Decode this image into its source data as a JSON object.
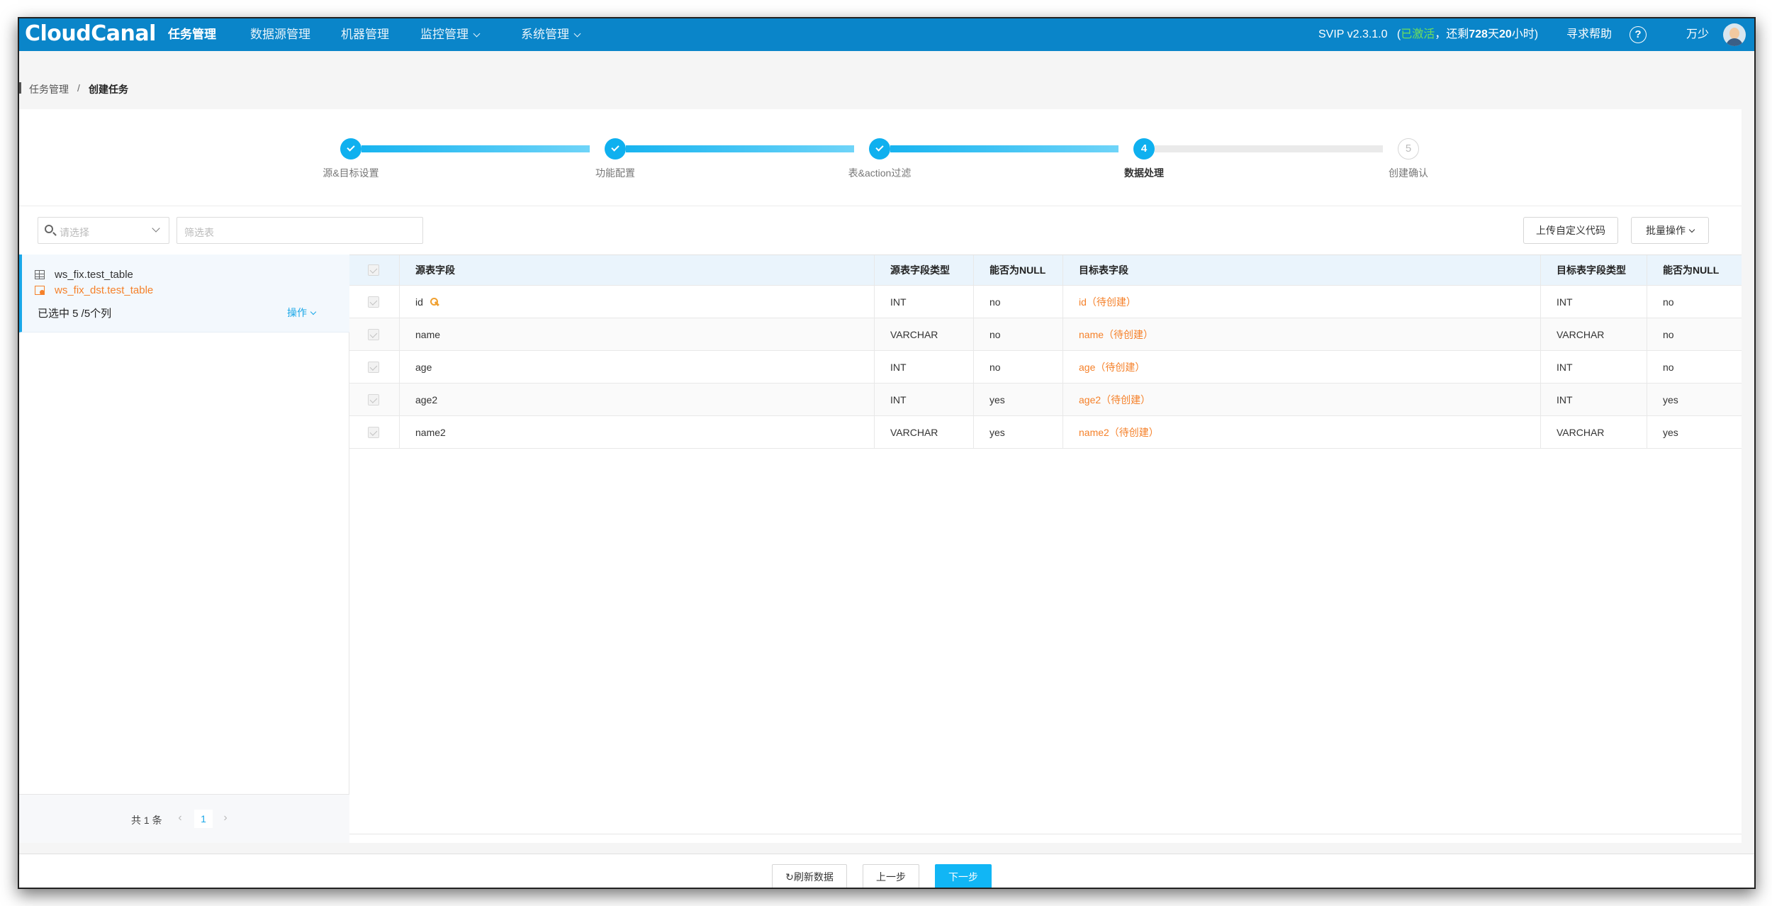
{
  "app": {
    "logo": "CloudCanal",
    "nav": [
      {
        "label": "任务管理",
        "active": true,
        "dropdown": false
      },
      {
        "label": "数据源管理",
        "active": false,
        "dropdown": false
      },
      {
        "label": "机器管理",
        "active": false,
        "dropdown": false
      },
      {
        "label": "监控管理",
        "active": false,
        "dropdown": true
      },
      {
        "label": "系统管理",
        "active": false,
        "dropdown": true
      }
    ],
    "version_prefix": "SVIP v2.3.1.0",
    "version_paren_open": "(",
    "activated": "已激活",
    "remaining_prefix": "，还剩",
    "remaining_days": "728",
    "days_unit": "天",
    "remaining_hours": "20",
    "hours_unit": "小时",
    "version_paren_close": ")",
    "help": "寻求帮助",
    "help_icon": "?",
    "user": "万少",
    "accent_color": "#0a85c9"
  },
  "breadcrumb": {
    "root": "任务管理",
    "separator": "/",
    "current": "创建任务"
  },
  "steps": [
    {
      "label": "源&目标设置",
      "status": "done",
      "number": "1"
    },
    {
      "label": "功能配置",
      "status": "done",
      "number": "2"
    },
    {
      "label": "表&action过滤",
      "status": "done",
      "number": "3"
    },
    {
      "label": "数据处理",
      "status": "current",
      "number": "4"
    },
    {
      "label": "创建确认",
      "status": "todo",
      "number": "5"
    }
  ],
  "filters": {
    "select_placeholder": "请选择",
    "table_filter_placeholder": "筛选表",
    "upload_code_button": "上传自定义代码",
    "batch_button": "批量操作"
  },
  "table_list": {
    "source_table": "ws_fix.test_table",
    "target_table": "ws_fix_dst.test_table",
    "selected_text": "已选中 5 /5个列",
    "operation": "操作"
  },
  "pagination": {
    "total": "共 1 条",
    "current_page": "1",
    "prev": "‹",
    "next": "›"
  },
  "field_table": {
    "columns": [
      "源表字段",
      "源表字段类型",
      "能否为NULL",
      "目标表字段",
      "目标表字段类型",
      "能否为NULL"
    ],
    "rows": [
      {
        "src": "id",
        "src_type": "INT",
        "nullable": "no",
        "dst": "id（待创建）",
        "dst_type": "INT",
        "dst_nullable": "no",
        "primary_key": true
      },
      {
        "src": "name",
        "src_type": "VARCHAR",
        "nullable": "no",
        "dst": "name（待创建）",
        "dst_type": "VARCHAR",
        "dst_nullable": "no",
        "primary_key": false
      },
      {
        "src": "age",
        "src_type": "INT",
        "nullable": "no",
        "dst": "age（待创建）",
        "dst_type": "INT",
        "dst_nullable": "no",
        "primary_key": false
      },
      {
        "src": "age2",
        "src_type": "INT",
        "nullable": "yes",
        "dst": "age2（待创建）",
        "dst_type": "INT",
        "dst_nullable": "yes",
        "primary_key": false
      },
      {
        "src": "name2",
        "src_type": "VARCHAR",
        "nullable": "yes",
        "dst": "name2（待创建）",
        "dst_type": "VARCHAR",
        "dst_nullable": "yes",
        "primary_key": false
      }
    ]
  },
  "footer": {
    "refresh": "刷新数据",
    "refresh_icon": "↻",
    "prev": "上一步",
    "next": "下一步"
  }
}
